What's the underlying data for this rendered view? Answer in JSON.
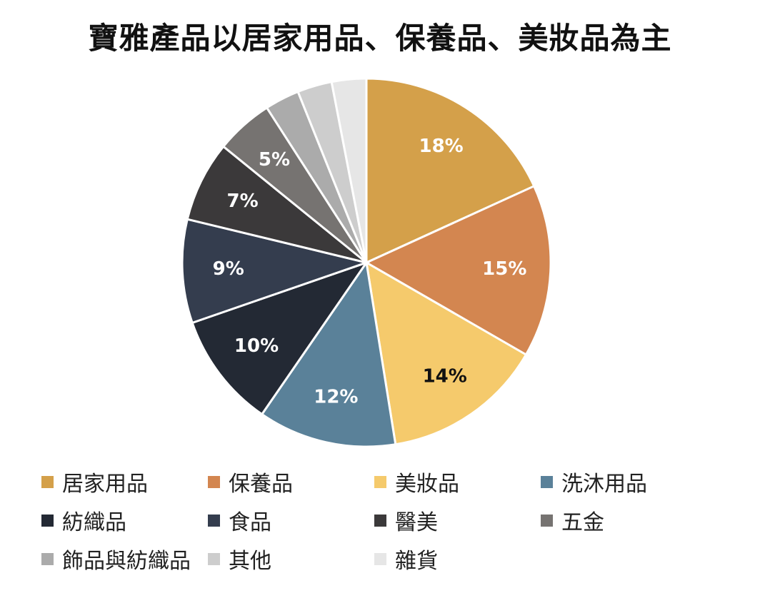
{
  "chart_data": {
    "type": "pie",
    "title": "寶雅產品以居家用品、保養品、美妝品為主",
    "slices": [
      {
        "label": "居家用品",
        "value": 18,
        "data_label": "18%",
        "color": "#D4A04A",
        "label_color": "#ffffff"
      },
      {
        "label": "保養品",
        "value": 15,
        "data_label": "15%",
        "color": "#D38650",
        "label_color": "#ffffff"
      },
      {
        "label": "美妝品",
        "value": 14,
        "data_label": "14%",
        "color": "#F5CA6C",
        "label_color": "#111111"
      },
      {
        "label": "洗沐用品",
        "value": 12,
        "data_label": "12%",
        "color": "#5A8199",
        "label_color": "#ffffff"
      },
      {
        "label": "紡織品",
        "value": 10,
        "data_label": "10%",
        "color": "#232934",
        "label_color": "#ffffff"
      },
      {
        "label": "食品",
        "value": 9,
        "data_label": "9%",
        "color": "#343D4E",
        "label_color": "#ffffff"
      },
      {
        "label": "醫美",
        "value": 7,
        "data_label": "7%",
        "color": "#3B393A",
        "label_color": "#ffffff"
      },
      {
        "label": "五金",
        "value": 5,
        "data_label": "5%",
        "color": "#767371",
        "label_color": "#ffffff"
      },
      {
        "label": "飾品與紡織品",
        "value": 3,
        "data_label": "",
        "color": "#ABABAB",
        "label_color": "#ffffff"
      },
      {
        "label": "其他",
        "value": 3,
        "data_label": "",
        "color": "#CDCDCD",
        "label_color": "#ffffff"
      },
      {
        "label": "雜貨",
        "value": 3,
        "data_label": "",
        "color": "#E6E6E6",
        "label_color": "#ffffff"
      }
    ],
    "legend_position": "bottom",
    "start_angle": "12 o'clock",
    "direction": "clockwise"
  }
}
